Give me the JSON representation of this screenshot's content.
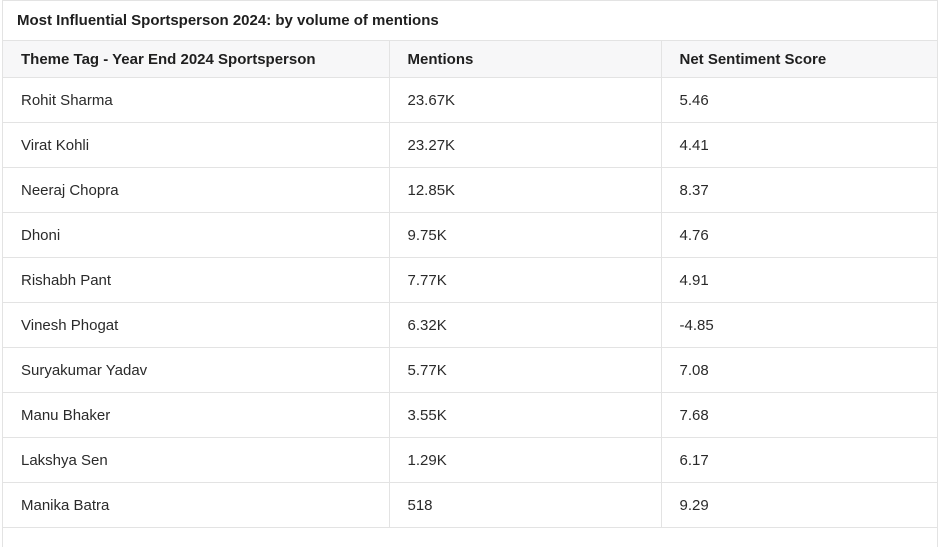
{
  "chart_data": {
    "type": "table",
    "title": "Most Influential Sportsperson 2024: by volume of mentions",
    "columns": [
      "Theme Tag - Year End 2024 Sportsperson",
      "Mentions",
      "Net Sentiment Score"
    ],
    "rows": [
      [
        "Rohit Sharma",
        "23.67K",
        "5.46"
      ],
      [
        "Virat Kohli",
        "23.27K",
        "4.41"
      ],
      [
        "Neeraj Chopra",
        "12.85K",
        "8.37"
      ],
      [
        "Dhoni",
        "9.75K",
        "4.76"
      ],
      [
        "Rishabh Pant",
        "7.77K",
        "4.91"
      ],
      [
        "Vinesh Phogat",
        "6.32K",
        "-4.85"
      ],
      [
        "Suryakumar Yadav",
        "5.77K",
        "7.08"
      ],
      [
        "Manu Bhaker",
        "3.55K",
        "7.68"
      ],
      [
        "Lakshya Sen",
        "1.29K",
        "6.17"
      ],
      [
        "Manika Batra",
        "518",
        "9.29"
      ]
    ]
  }
}
